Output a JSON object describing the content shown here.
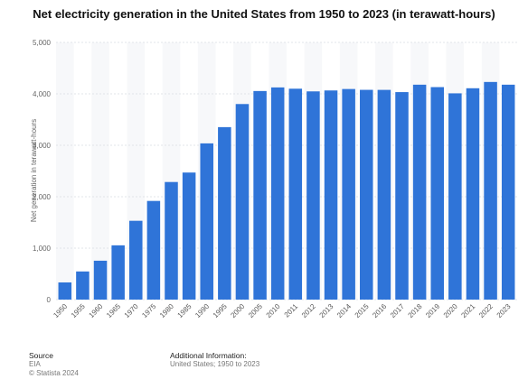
{
  "chart_data": {
    "type": "bar",
    "title": "Net electricity generation in the United States from 1950 to 2023 (in terawatt-hours)",
    "xlabel": "",
    "ylabel": "Net generation in terawatt-hours",
    "ylim": [
      0,
      5000
    ],
    "yticks": [
      0,
      1000,
      2000,
      3000,
      4000,
      5000
    ],
    "ytick_labels": [
      "0",
      "1,000",
      "2,000",
      "3,000",
      "4,000",
      "5,000"
    ],
    "grid": true,
    "bar_color": "#2f74d8",
    "categories": [
      "1950",
      "1955",
      "1960",
      "1965",
      "1970",
      "1975",
      "1980",
      "1985",
      "1990",
      "1995",
      "2000",
      "2005",
      "2010",
      "2011",
      "2012",
      "2013",
      "2014",
      "2015",
      "2016",
      "2017",
      "2018",
      "2019",
      "2020",
      "2021",
      "2022",
      "2023"
    ],
    "values": [
      334,
      547,
      756,
      1055,
      1532,
      1918,
      2286,
      2470,
      3037,
      3353,
      3802,
      4055,
      4125,
      4100,
      4048,
      4066,
      4094,
      4078,
      4077,
      4034,
      4178,
      4131,
      4010,
      4109,
      4231,
      4178
    ]
  },
  "footer": {
    "source_label": "Source",
    "source_value": "EIA",
    "copyright": "© Statista 2024",
    "additional_label": "Additional Information:",
    "additional_value": "United States; 1950 to 2023"
  }
}
